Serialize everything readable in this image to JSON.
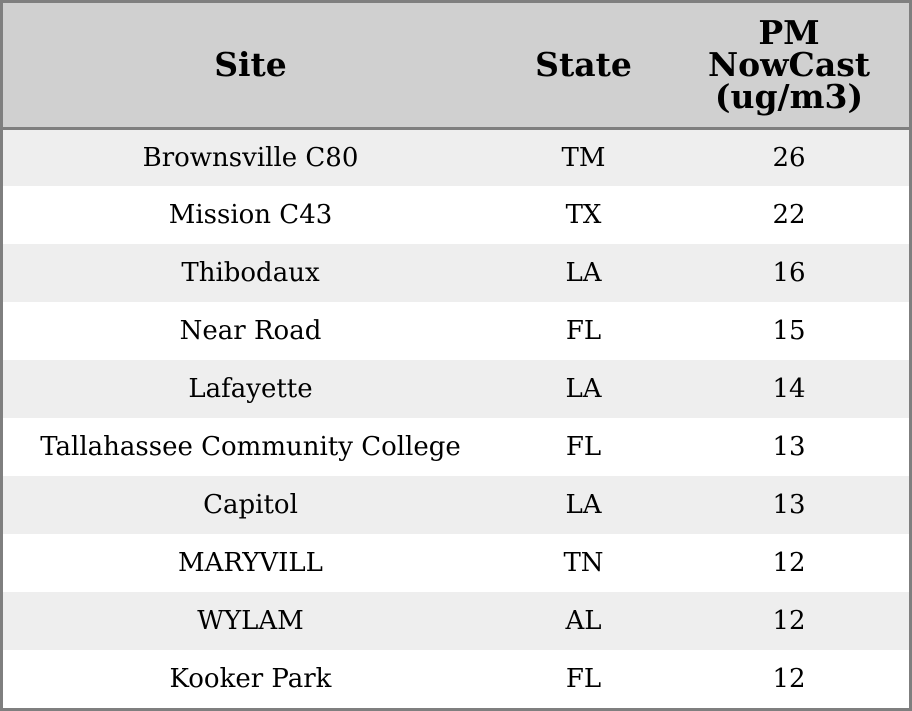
{
  "chart_data": {
    "type": "table",
    "columns": [
      "Site",
      "State",
      "PM NowCast (ug/m3)"
    ],
    "header_lines": {
      "site": [
        "Site"
      ],
      "state": [
        "State"
      ],
      "pm": [
        "PM",
        "NowCast",
        "(ug/m3)"
      ]
    },
    "rows": [
      {
        "site": "Brownsville C80",
        "state": "TM",
        "pm": "26"
      },
      {
        "site": "Mission C43",
        "state": "TX",
        "pm": "22"
      },
      {
        "site": "Thibodaux",
        "state": "LA",
        "pm": "16"
      },
      {
        "site": "Near Road",
        "state": "FL",
        "pm": "15"
      },
      {
        "site": "Lafayette",
        "state": "LA",
        "pm": "14"
      },
      {
        "site": "Tallahassee Community College",
        "state": "FL",
        "pm": "13"
      },
      {
        "site": "Capitol",
        "state": "LA",
        "pm": "13"
      },
      {
        "site": "MARYVILL",
        "state": "TN",
        "pm": "12"
      },
      {
        "site": "WYLAM",
        "state": "AL",
        "pm": "12"
      },
      {
        "site": "Kooker Park",
        "state": "FL",
        "pm": "12"
      }
    ],
    "colors": {
      "header_background": "#d0d0d0",
      "shaded_row": "#eeeeee",
      "plain_row": "#ffffff",
      "border": "#7f7f7f"
    }
  }
}
